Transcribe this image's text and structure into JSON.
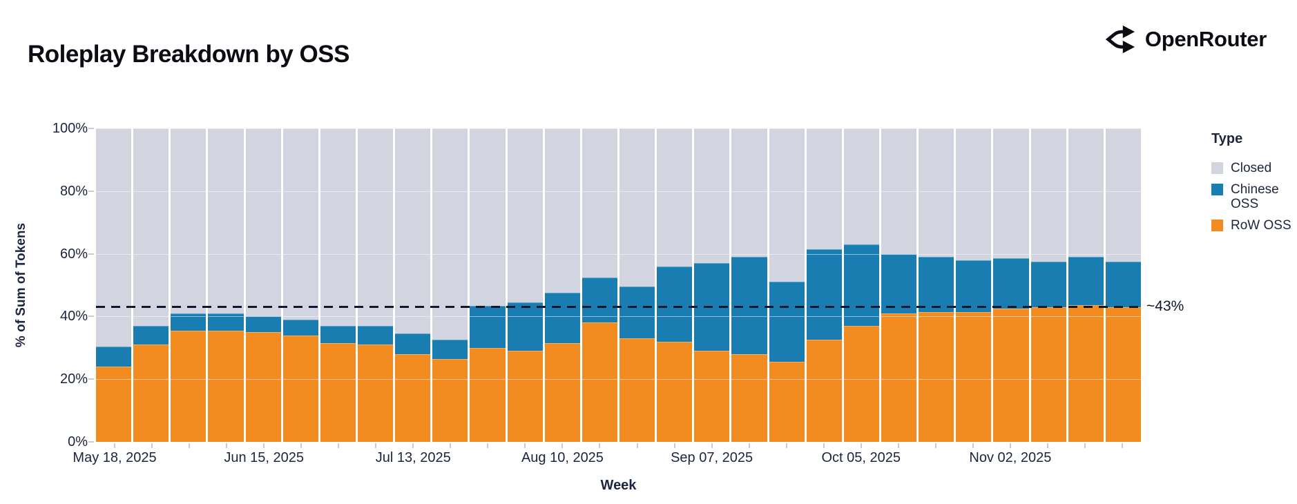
{
  "header": {
    "title": "Roleplay Breakdown by OSS",
    "brand": "OpenRouter"
  },
  "colors": {
    "background": "#ffffff",
    "closed": "#d2d4e0",
    "chinese_oss": "#1a7db2",
    "row_oss": "#f28b20",
    "axis_text": "#1d2440",
    "tick_mark": "#c9cbd5",
    "reference_line": "#10162b"
  },
  "chart_data": {
    "type": "bar",
    "stacked": true,
    "title": "Roleplay Breakdown by OSS",
    "xlabel": "Week",
    "ylabel": "% of Sum of Tokens",
    "ylim": [
      0,
      100
    ],
    "yticks": [
      0,
      20,
      40,
      60,
      80,
      100
    ],
    "ytick_suffix": "%",
    "grid": "subtle horizontal white lines at 20/40/60/80",
    "x": {
      "n_bars": 28,
      "unit": "week",
      "tick_every": 4,
      "tick_labels": [
        "May 18, 2025",
        "Jun 15, 2025",
        "Jul 13, 2025",
        "Aug 10, 2025",
        "Sep 07, 2025",
        "Oct 05, 2025",
        "Nov 02, 2025"
      ]
    },
    "series": [
      {
        "name": "RoW OSS",
        "color": "#f28b20",
        "values": [
          24,
          31,
          35.5,
          35.5,
          35,
          34,
          31.5,
          31,
          28,
          26.5,
          30,
          29,
          31.5,
          38,
          33,
          32,
          29,
          28,
          25.5,
          32.5,
          37,
          41,
          41.5,
          41.5,
          42.5,
          43,
          43.5,
          43
        ]
      },
      {
        "name": "Chinese OSS",
        "color": "#1a7db2",
        "values": [
          6.5,
          6,
          5.5,
          5.5,
          5,
          5,
          5.5,
          6,
          6.5,
          6,
          13.5,
          15.5,
          16,
          14.5,
          16.5,
          24,
          28,
          31,
          25.5,
          29,
          26,
          19,
          17.5,
          16.5,
          16,
          14.5,
          15.5,
          14.5
        ]
      },
      {
        "name": "Closed",
        "color": "#d2d4e0",
        "values": [
          69.5,
          63,
          59,
          59,
          60,
          61,
          63,
          63,
          65.5,
          67.5,
          56.5,
          55.5,
          52.5,
          47.5,
          50.5,
          44,
          43,
          41,
          49,
          38.5,
          37,
          40,
          41,
          42,
          41.5,
          42.5,
          41,
          42.5
        ]
      }
    ],
    "reference_line": {
      "value": 43,
      "label": "~43%",
      "style": "dashed",
      "color": "#10162b"
    },
    "legend": {
      "title": "Type",
      "position": "right",
      "items": [
        {
          "label": "Closed",
          "color": "#d2d4e0"
        },
        {
          "label": "Chinese OSS",
          "color": "#1a7db2"
        },
        {
          "label": "RoW OSS",
          "color": "#f28b20"
        }
      ]
    }
  }
}
